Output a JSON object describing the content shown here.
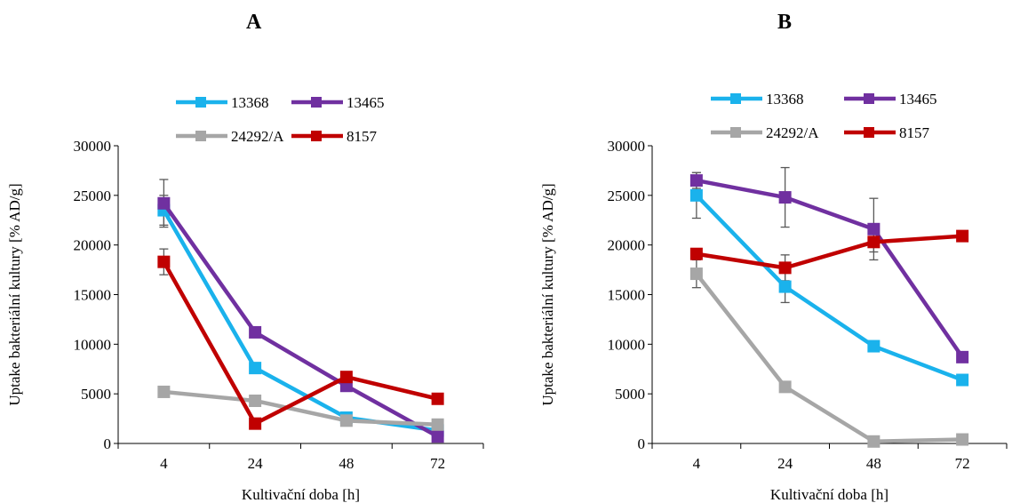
{
  "chart_data": [
    {
      "panel_label": "A",
      "type": "line",
      "categories": [
        "4",
        "24",
        "48",
        "72"
      ],
      "xlabel": "Kultivační doba [h]",
      "ylabel": "Uptake bakteriální kultury [% AD/g]",
      "ylim": [
        0,
        30000
      ],
      "yticks": [
        "0",
        "5000",
        "10000",
        "15000",
        "20000",
        "25000",
        "30000"
      ],
      "grid": false,
      "legend_position": "top",
      "series": [
        {
          "name": "13368",
          "color": "#1ab2ec",
          "values": [
            23500,
            7600,
            2600,
            1300
          ],
          "errors": [
            1500,
            0,
            0,
            0
          ]
        },
        {
          "name": "13465",
          "color": "#7030a0",
          "values": [
            24200,
            11200,
            5800,
            700
          ],
          "errors": [
            2400,
            0,
            0,
            0
          ]
        },
        {
          "name": "24292/A",
          "color": "#a6a6a6",
          "values": [
            5200,
            4300,
            2300,
            1900
          ],
          "errors": [
            0,
            0,
            0,
            0
          ]
        },
        {
          "name": "8157",
          "color": "#c00000",
          "values": [
            18300,
            2000,
            6700,
            4500
          ],
          "errors": [
            1300,
            0,
            0,
            0
          ]
        }
      ]
    },
    {
      "panel_label": "B",
      "type": "line",
      "categories": [
        "4",
        "24",
        "48",
        "72"
      ],
      "xlabel": "Kultivační doba [h]",
      "ylabel": "Uptake bakteriální kultury [% AD/g]",
      "ylim": [
        0,
        30000
      ],
      "yticks": [
        "0",
        "5000",
        "10000",
        "15000",
        "20000",
        "25000",
        "30000"
      ],
      "grid": false,
      "legend_position": "top",
      "series": [
        {
          "name": "13368",
          "color": "#1ab2ec",
          "values": [
            25000,
            15800,
            9800,
            6400
          ],
          "errors": [
            2300,
            1600,
            0,
            0
          ]
        },
        {
          "name": "13465",
          "color": "#7030a0",
          "values": [
            26500,
            24800,
            21600,
            8700
          ],
          "errors": [
            800,
            3000,
            3100,
            0
          ]
        },
        {
          "name": "24292/A",
          "color": "#a6a6a6",
          "values": [
            17100,
            5700,
            200,
            400
          ],
          "errors": [
            1400,
            0,
            0,
            0
          ]
        },
        {
          "name": "8157",
          "color": "#c00000",
          "values": [
            19100,
            17700,
            20300,
            20900
          ],
          "errors": [
            0,
            1300,
            1000,
            0
          ]
        }
      ]
    }
  ]
}
